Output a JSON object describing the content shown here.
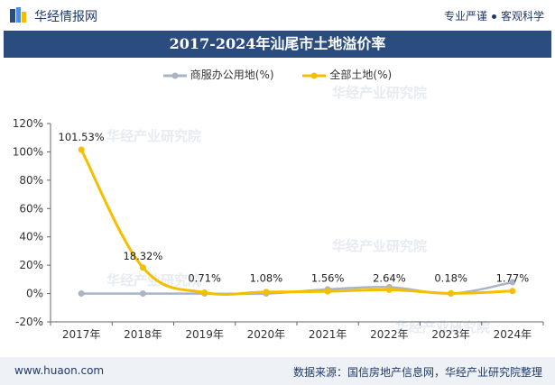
{
  "header": {
    "brand": "华经情报网",
    "tagline_left": "专业严谨",
    "tagline_right": "客观科学"
  },
  "watermark": "华经产业研究院",
  "footer": {
    "site": "www.huaon.com",
    "source": "数据来源：国信房地产信息网，华经产业研究院整理"
  },
  "colors": {
    "title_bar": "#2b4c7e",
    "series_commercial": "#a9b4c6",
    "series_all": "#f5be00"
  },
  "chart_data": {
    "type": "line",
    "title": "2017-2024年汕尾市土地溢价率",
    "categories": [
      "2017年",
      "2018年",
      "2019年",
      "2020年",
      "2021年",
      "2022年",
      "2023年",
      "2024年"
    ],
    "yticks": [
      "120%",
      "100%",
      "80%",
      "60%",
      "40%",
      "20%",
      "0%",
      "-20%"
    ],
    "ylim": [
      -20,
      120
    ],
    "grid": false,
    "legend_position": "top",
    "series": [
      {
        "name": "商服办公用地(%)",
        "values": [
          0,
          0,
          0,
          0,
          3,
          4.5,
          0,
          8
        ],
        "color": "#a9b4c6"
      },
      {
        "name": "全部土地(%)",
        "values": [
          101.53,
          18.32,
          0.71,
          1.08,
          1.56,
          2.64,
          0.18,
          1.77
        ],
        "color": "#f5be00",
        "labels": [
          "101.53%",
          "18.32%",
          "0.71%",
          "1.08%",
          "1.56%",
          "2.64%",
          "0.18%",
          "1.77%"
        ]
      }
    ]
  }
}
